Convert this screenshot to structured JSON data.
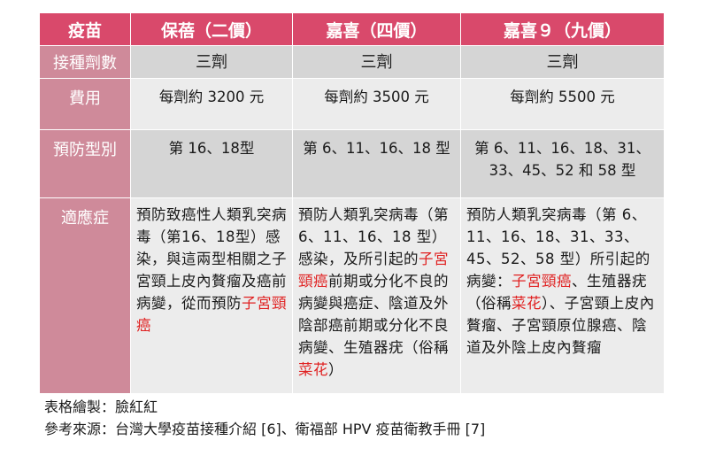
{
  "table": {
    "headers": [
      "疫苗",
      "保蓓（二價）",
      "嘉喜（四價）",
      "嘉喜９（九價）"
    ],
    "rows": [
      {
        "label": "接種劑數",
        "cells": [
          "三劑",
          "三劑",
          "三劑"
        ]
      },
      {
        "label": "費用",
        "cells": [
          "每劑約 3200 元",
          "每劑約 3500 元",
          "每劑約 5500 元"
        ]
      },
      {
        "label": "預防型別",
        "cells": [
          "第 16、18型",
          "第 6、11、16、18 型",
          "第 6、11、16、18、31、33、45、52 和 58 型"
        ]
      },
      {
        "label": "適應症",
        "cells": [
          {
            "pre": "預防致癌性人類乳突病毒（第16、18型）感染，與這兩型相關之子宮頸上皮內贅瘤及癌前病變，從而預防",
            "red1": "子宮頸癌",
            "mid": "",
            "red2": "",
            "post": ""
          },
          {
            "pre": "預防人類乳突病毒（第 6、11、16、18 型）感染，及所引起的",
            "red1": "子宮頸癌",
            "mid": "前期或分化不良的病變與癌症、陰道及外陰部癌前期或分化不良病變、生殖器疣（俗稱",
            "red2": "菜花",
            "post": "）"
          },
          {
            "pre": "預防人類乳突病毒（第 6、11、16、18、31、33、45、52、58 型）所引起的病變：",
            "red1": "子宮頸癌",
            "mid": "、生殖器疣（俗稱",
            "red2": "菜花",
            "post": "）、子宮頸上皮內贅瘤、子宮頸原位腺癌、陰道及外陰上皮內贅瘤"
          }
        ]
      }
    ]
  },
  "footer": {
    "author": "表格繪製：臉紅紅",
    "source": "參考來源：台灣大學疫苗接種介紹 [6]、衛福部 HPV 疫苗衛教手冊 [7]"
  }
}
